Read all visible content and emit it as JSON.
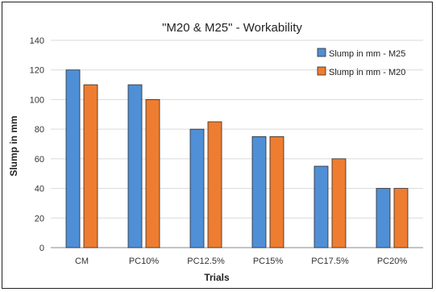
{
  "chart_data": {
    "type": "bar",
    "title": "\"M20 & M25\" - Workability",
    "xlabel": "Trials",
    "ylabel": "Slump in mm",
    "categories": [
      "CM",
      "PC10%",
      "PC12.5%",
      "PC15%",
      "PC17.5%",
      "PC20%"
    ],
    "series": [
      {
        "name": "Slump in mm - M25",
        "color": "#4f8fd6",
        "values": [
          120,
          110,
          80,
          75,
          55,
          40
        ]
      },
      {
        "name": "Slump in mm - M20",
        "color": "#ee7d31",
        "values": [
          110,
          100,
          85,
          75,
          60,
          40
        ]
      }
    ],
    "ylim": [
      0,
      140
    ],
    "yticks": [
      "0",
      "20",
      "40",
      "60",
      "80",
      "100",
      "120",
      "140"
    ],
    "grid": true,
    "legend_position": "top-right"
  }
}
